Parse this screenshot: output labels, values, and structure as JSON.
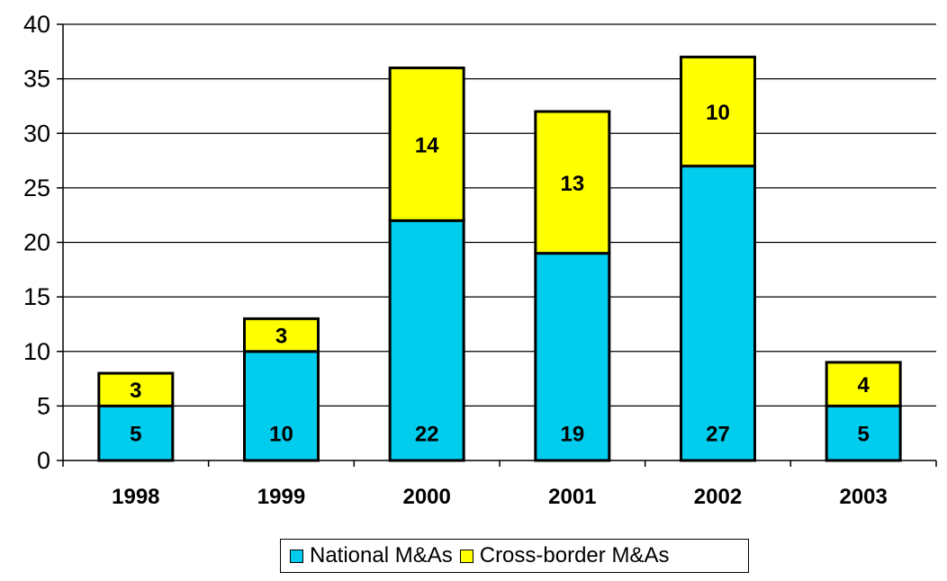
{
  "chart_data": {
    "type": "bar",
    "stacked": true,
    "categories": [
      "1998",
      "1999",
      "2000",
      "2001",
      "2002",
      "2003"
    ],
    "series": [
      {
        "name": "National M&As",
        "values": [
          5,
          10,
          22,
          19,
          27,
          5
        ],
        "color": "#00CCEE"
      },
      {
        "name": "Cross-border M&As",
        "values": [
          3,
          3,
          14,
          13,
          10,
          4
        ],
        "color": "#FFFF00"
      }
    ],
    "ylim": [
      0,
      40
    ],
    "yticks": [
      "0",
      "5",
      "10",
      "15",
      "20",
      "25",
      "30",
      "35",
      "40"
    ],
    "grid": true,
    "legend_position": "bottom"
  }
}
